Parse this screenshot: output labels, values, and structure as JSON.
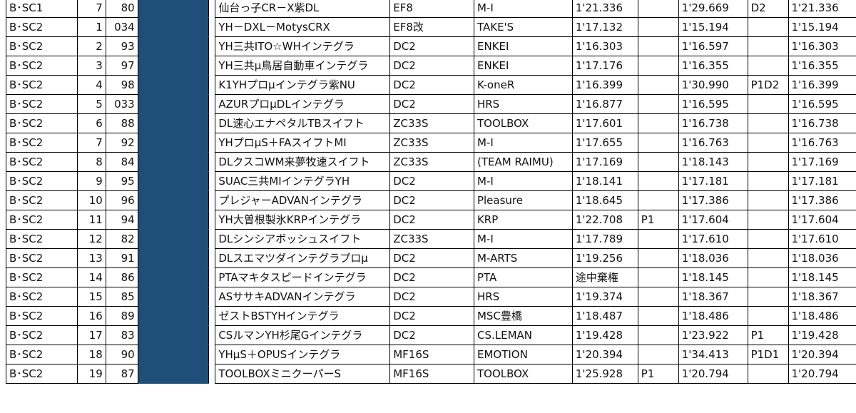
{
  "rows": [
    {
      "cls": "B･SC1",
      "pos": "7",
      "no": "80",
      "car": "仙台っ子CR－X紫DL",
      "model": "EF8",
      "tire": "M-I",
      "t1": "1'21.336",
      "p1": "",
      "t2": "1'29.669",
      "p2": "D2",
      "best": "1'21.336"
    },
    {
      "cls": "B･SC2",
      "pos": "1",
      "no": "034",
      "car": "YH－DXL－MotysCRX",
      "model": "EF8改",
      "tire": "TAKE'S",
      "t1": "1'17.132",
      "p1": "",
      "t2": "1'15.194",
      "p2": "",
      "best": "1'15.194"
    },
    {
      "cls": "B･SC2",
      "pos": "2",
      "no": "93",
      "car": "YH三共ITO☆WHインテグラ",
      "model": "DC2",
      "tire": "ENKEI",
      "t1": "1'16.303",
      "p1": "",
      "t2": "1'16.597",
      "p2": "",
      "best": "1'16.303"
    },
    {
      "cls": "B･SC2",
      "pos": "3",
      "no": "97",
      "car": "YH三共μ鳥居自動車インテグラ",
      "model": "DC2",
      "tire": "ENKEI",
      "t1": "1'17.176",
      "p1": "",
      "t2": "1'16.355",
      "p2": "",
      "best": "1'16.355"
    },
    {
      "cls": "B･SC2",
      "pos": "4",
      "no": "98",
      "car": "K1YHプロμインテグラ紫NU",
      "model": "DC2",
      "tire": "K-oneR",
      "t1": "1'16.399",
      "p1": "",
      "t2": "1'30.990",
      "p2": "P1D2",
      "best": "1'16.399"
    },
    {
      "cls": "B･SC2",
      "pos": "5",
      "no": "033",
      "car": "AZURプロμDLインテグラ",
      "model": "DC2",
      "tire": "HRS",
      "t1": "1'16.877",
      "p1": "",
      "t2": "1'16.595",
      "p2": "",
      "best": "1'16.595"
    },
    {
      "cls": "B･SC2",
      "pos": "6",
      "no": "88",
      "car": "DL速心エナペタルTBスイフト",
      "model": "ZC33S",
      "tire": "TOOLBOX",
      "t1": "1'17.601",
      "p1": "",
      "t2": "1'16.738",
      "p2": "",
      "best": "1'16.738"
    },
    {
      "cls": "B･SC2",
      "pos": "7",
      "no": "92",
      "car": "YHプロμS＋FAスイフトMI",
      "model": "ZC33S",
      "tire": "M-I",
      "t1": "1'17.655",
      "p1": "",
      "t2": "1'16.763",
      "p2": "",
      "best": "1'16.763"
    },
    {
      "cls": "B･SC2",
      "pos": "8",
      "no": "84",
      "car": "DLクスコWM来夢牧速スイフト",
      "model": "ZC33S",
      "tire": "(TEAM RAIMU)",
      "t1": "1'17.169",
      "p1": "",
      "t2": "1'18.143",
      "p2": "",
      "best": "1'17.169"
    },
    {
      "cls": "B･SC2",
      "pos": "9",
      "no": "95",
      "car": "SUAC三共MIインテグラYH",
      "model": "DC2",
      "tire": "M-I",
      "t1": "1'18.141",
      "p1": "",
      "t2": "1'17.181",
      "p2": "",
      "best": "1'17.181"
    },
    {
      "cls": "B･SC2",
      "pos": "10",
      "no": "96",
      "car": "プレジャーADVANインテグラ",
      "model": "DC2",
      "tire": "Pleasure",
      "t1": "1'18.645",
      "p1": "",
      "t2": "1'17.386",
      "p2": "",
      "best": "1'17.386"
    },
    {
      "cls": "B･SC2",
      "pos": "11",
      "no": "94",
      "car": "YH大曽根製氷KRPインテグラ",
      "model": "DC2",
      "tire": "KRP",
      "t1": "1'22.708",
      "p1": "P1",
      "t2": "1'17.604",
      "p2": "",
      "best": "1'17.604"
    },
    {
      "cls": "B･SC2",
      "pos": "12",
      "no": "82",
      "car": "DLシンシアボッシュスイフト",
      "model": "ZC33S",
      "tire": "M-I",
      "t1": "1'17.789",
      "p1": "",
      "t2": "1'17.610",
      "p2": "",
      "best": "1'17.610"
    },
    {
      "cls": "B･SC2",
      "pos": "13",
      "no": "91",
      "car": "DLスエマツダインテグラプロμ",
      "model": "DC2",
      "tire": "M-ARTS",
      "t1": "1'19.256",
      "p1": "",
      "t2": "1'18.036",
      "p2": "",
      "best": "1'18.036"
    },
    {
      "cls": "B･SC2",
      "pos": "14",
      "no": "86",
      "car": "PTAマキタスピードインテグラ",
      "model": "DC2",
      "tire": "PTA",
      "t1": "途中棄権",
      "p1": "",
      "t2": "1'18.145",
      "p2": "",
      "best": "1'18.145"
    },
    {
      "cls": "B･SC2",
      "pos": "15",
      "no": "85",
      "car": "ASササキADVANインテグラ",
      "model": "DC2",
      "tire": "HRS",
      "t1": "1'19.374",
      "p1": "",
      "t2": "1'18.367",
      "p2": "",
      "best": "1'18.367"
    },
    {
      "cls": "B･SC2",
      "pos": "16",
      "no": "89",
      "car": "ゼストBSTYHインテグラ",
      "model": "DC2",
      "tire": "MSC豊橋",
      "t1": "1'18.487",
      "p1": "",
      "t2": "1'18.486",
      "p2": "",
      "best": "1'18.486"
    },
    {
      "cls": "B･SC2",
      "pos": "17",
      "no": "83",
      "car": "CSルマンYH杉尾Gインテグラ",
      "model": "DC2",
      "tire": "CS.LEMAN",
      "t1": "1'19.428",
      "p1": "",
      "t2": "1'23.922",
      "p2": "P1",
      "best": "1'19.428"
    },
    {
      "cls": "B･SC2",
      "pos": "18",
      "no": "90",
      "car": "YHμS＋OPUSインテグラ",
      "model": "MF16S",
      "tire": "EMOTION",
      "t1": "1'20.394",
      "p1": "",
      "t2": "1'34.413",
      "p2": "P1D1",
      "best": "1'20.394"
    },
    {
      "cls": "B･SC2",
      "pos": "19",
      "no": "87",
      "car": "TOOLBOXミニクーパーS",
      "model": "MF16S",
      "tire": "TOOLBOX",
      "t1": "1'25.928",
      "p1": "P1",
      "t2": "1'20.794",
      "p2": "",
      "best": "1'20.794"
    }
  ],
  "colors": {
    "redaction": "#1f4e79",
    "grid": "#000000",
    "text": "#111111"
  }
}
